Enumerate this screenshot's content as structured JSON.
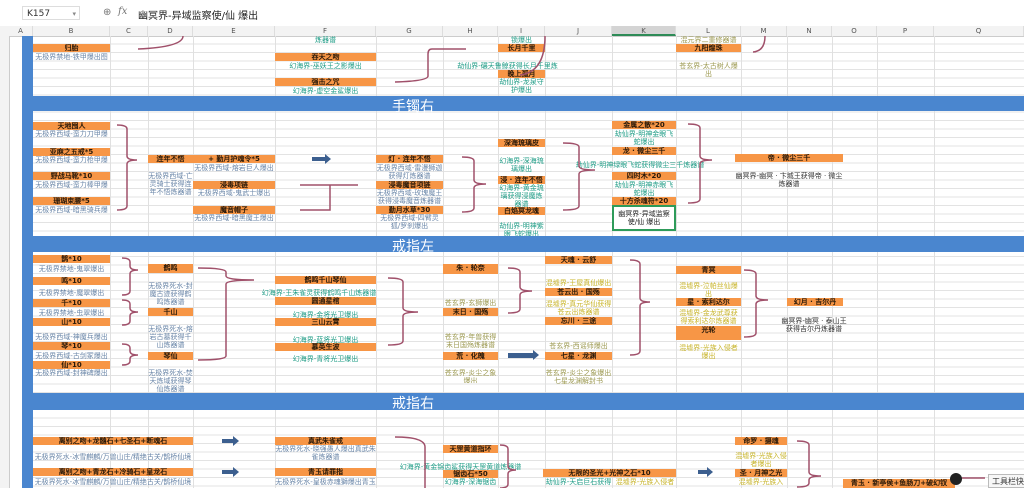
{
  "formula_bar": {
    "cell_ref": "K157",
    "zoom_icon": "zoom-icon",
    "fx_label": "fx",
    "formula": "幽冥界-异域监察使/仙 爆出"
  },
  "columns": [
    "A",
    "B",
    "C",
    "D",
    "E",
    "F",
    "G",
    "H",
    "I",
    "J",
    "K",
    "L",
    "M",
    "N",
    "O",
    "P",
    "Q"
  ],
  "selected_column": "K",
  "sections": [
    "手镯右",
    "戒指左",
    "戒指右"
  ],
  "items": [
    {
      "text": "炼器谱",
      "kind": "note-teal"
    },
    {
      "text": "归胎",
      "kind": "header"
    },
    {
      "text": "无极界禁地-铁甲爆出图",
      "kind": "note-blue"
    },
    {
      "text": "吞天之吻",
      "kind": "header"
    },
    {
      "text": "幻海界-巫妖王之影爆出",
      "kind": "note-teal"
    },
    {
      "text": "强击之咒",
      "kind": "header"
    },
    {
      "text": "幻海界-虚空金鲨爆出",
      "kind": "note-teal"
    },
    {
      "text": "锁爆出",
      "kind": "note-teal"
    },
    {
      "text": "长月千里",
      "kind": "header"
    },
    {
      "text": "劫仙界-碾天鲁鲸获得长月千里炼器谱",
      "kind": "note-teal"
    },
    {
      "text": "晚上孤月",
      "kind": "header"
    },
    {
      "text": "劫仙界-龙泉守护爆出",
      "kind": "note-teal"
    },
    {
      "text": "混元界二重修器谱",
      "kind": "note-olive"
    },
    {
      "text": "九阳煌珠",
      "kind": "header"
    },
    {
      "text": "苍玄界-太古树人爆出",
      "kind": "note-olive"
    },
    {
      "text": "天地囤人",
      "kind": "header"
    },
    {
      "text": "无极界西域-蛮力刀甲爆出",
      "kind": "note-blue"
    },
    {
      "text": "亚麻之五戒*5",
      "kind": "header"
    },
    {
      "text": "无极界西域-蛮力枪甲爆出",
      "kind": "note-blue"
    },
    {
      "text": "野战马靴*10",
      "kind": "header"
    },
    {
      "text": "无极界西域-蛮力棒甲爆出",
      "kind": "note-blue"
    },
    {
      "text": "珊瑚束腰*5",
      "kind": "header"
    },
    {
      "text": "无极界西域-暗黑骑兵爆出",
      "kind": "note-blue"
    },
    {
      "text": "连年不悟",
      "kind": "header"
    },
    {
      "text": "无极界西域-亡灵骑士获得连年不悟炼器谱",
      "kind": "note-blue"
    },
    {
      "text": "+ 勤月护魂令*5",
      "kind": "header"
    },
    {
      "text": "无极界西域-熔岩巨人爆出",
      "kind": "note-blue"
    },
    {
      "text": "浸毒项链",
      "kind": "header"
    },
    {
      "text": "无极界西域-鬼武士爆出",
      "kind": "note-blue"
    },
    {
      "text": "魔音帽子",
      "kind": "header"
    },
    {
      "text": "无极界西域-暗黑魔王爆出",
      "kind": "note-blue"
    },
    {
      "text": "灯 · 连年不悟",
      "kind": "header"
    },
    {
      "text": "无极界西域-雷漫狮迦获得灯炼器谱",
      "kind": "note-blue"
    },
    {
      "text": "浸毒魔音项链",
      "kind": "header"
    },
    {
      "text": "无极界西域-玫瑰魔王获得浸毒魔音炼器谱",
      "kind": "note-blue"
    },
    {
      "text": "勤月水草*30",
      "kind": "header"
    },
    {
      "text": "无极界西域-四臂灵狐/罗刹爆出",
      "kind": "note-blue"
    },
    {
      "text": "深海琉璃皮",
      "kind": "header"
    },
    {
      "text": "幻海界-深海琉璃爆出",
      "kind": "note-teal"
    },
    {
      "text": "浸 · 连年不悟",
      "kind": "header"
    },
    {
      "text": "幻海界-黄金琉璃获得浸魔炼器谱",
      "kind": "note-teal"
    },
    {
      "text": "白焰冥龙魂*88",
      "kind": "header"
    },
    {
      "text": "劫仙界-明神紫眼飞蛇爆出",
      "kind": "note-teal"
    },
    {
      "text": "金属之散*20",
      "kind": "header"
    },
    {
      "text": "劫仙界-明神金眼飞蛇爆出",
      "kind": "note-teal"
    },
    {
      "text": "龙 · 微尘三千",
      "kind": "header"
    },
    {
      "text": "劫仙界-明神绿眼飞蛇获得微尘三千炼器谱",
      "kind": "note-teal"
    },
    {
      "text": "四时木*20",
      "kind": "header"
    },
    {
      "text": "劫仙界-明神赤眼飞蛇爆出",
      "kind": "note-teal"
    },
    {
      "text": "十方杀魂符*20",
      "kind": "header"
    },
    {
      "text": "幽冥界-异域监察使/仙 爆出",
      "kind": "selected"
    },
    {
      "text": "帝 · 微尘三千",
      "kind": "header"
    },
    {
      "text": "幽冥界-幽冥 · 卞城王获得帝 · 微尘炼器谱",
      "kind": "note-dark"
    },
    {
      "text": "鹊*10",
      "kind": "header"
    },
    {
      "text": "无极界禁地-鬼翠爆出",
      "kind": "note-blue"
    },
    {
      "text": "鸣*10",
      "kind": "header"
    },
    {
      "text": "无极界禁地-魔翠爆出",
      "kind": "note-blue"
    },
    {
      "text": "千*10",
      "kind": "header"
    },
    {
      "text": "无极界禁地-虫翠爆出",
      "kind": "note-blue"
    },
    {
      "text": "山*10",
      "kind": "header"
    },
    {
      "text": "无极界西域-神魔兵爆出",
      "kind": "note-blue"
    },
    {
      "text": "琴*10",
      "kind": "header"
    },
    {
      "text": "无极界西域-古剑冢爆出",
      "kind": "note-blue"
    },
    {
      "text": "仙*10",
      "kind": "header"
    },
    {
      "text": "无极界西域-封神碑爆出",
      "kind": "note-blue"
    },
    {
      "text": "鹤鸣",
      "kind": "header"
    },
    {
      "text": "无极界死水-封魔古迹获得鹤鸣炼器谱",
      "kind": "note-blue"
    },
    {
      "text": "千山",
      "kind": "header"
    },
    {
      "text": "无极界死水-熔岩古墓获得千山炼器谱",
      "kind": "note-blue"
    },
    {
      "text": "琴仙",
      "kind": "header"
    },
    {
      "text": "无极界死水-焚天炼域获得琴仙炼器谱",
      "kind": "note-blue"
    },
    {
      "text": "鹤鸣千山琴仙",
      "kind": "header"
    },
    {
      "text": "幻海界-王朱雀灵获得鹤鸣千山炼器谱",
      "kind": "note-teal"
    },
    {
      "text": "圆通星棺",
      "kind": "header"
    },
    {
      "text": "幻海界-金将光卫爆出",
      "kind": "note-teal"
    },
    {
      "text": "三山云霄",
      "kind": "header"
    },
    {
      "text": "幻海界-蓝将光卫爆出",
      "kind": "note-teal"
    },
    {
      "text": "慕英生波",
      "kind": "header"
    },
    {
      "text": "幻海界-青将光卫爆出",
      "kind": "note-teal"
    },
    {
      "text": "朱 · 轮奈",
      "kind": "header"
    },
    {
      "text": "苍玄界-玄狮爆出",
      "kind": "note-olive"
    },
    {
      "text": "末日 · 国殇",
      "kind": "header"
    },
    {
      "text": "苍玄界-年兽获得末日国殇炼器谱",
      "kind": "note-olive"
    },
    {
      "text": "荒 · 化魄",
      "kind": "header"
    },
    {
      "text": "苍玄界-炎尘之象爆出",
      "kind": "note-olive"
    },
    {
      "text": "天魂 · 云舒",
      "kind": "header"
    },
    {
      "text": "混墟界-王屋真仙爆出",
      "kind": "note-yellow"
    },
    {
      "text": "苍云出 · 国殇",
      "kind": "header"
    },
    {
      "text": "混墟界-真元华仙获得苍云出炼器谱",
      "kind": "note-yellow"
    },
    {
      "text": "忘川 · 三途",
      "kind": "header"
    },
    {
      "text": "苍玄界-西谣师爆出",
      "kind": "note-olive"
    },
    {
      "text": "七星 · 龙渊",
      "kind": "header"
    },
    {
      "text": "苍玄界-炎尘之象爆出七星龙渊解封书",
      "kind": "note-olive"
    },
    {
      "text": "青冥",
      "kind": "header"
    },
    {
      "text": "混墟界-泣帕丝仙爆出",
      "kind": "note-yellow"
    },
    {
      "text": "星 · 索利达尔",
      "kind": "header"
    },
    {
      "text": "混墟界-金龙武尊获得索利达尔炼器谱",
      "kind": "note-yellow"
    },
    {
      "text": "光轮",
      "kind": "header"
    },
    {
      "text": "混墟界-光族入侵者爆出",
      "kind": "note-yellow"
    },
    {
      "text": "幻月 · 吉尔丹",
      "kind": "header"
    },
    {
      "text": "幽冥界-幽冥 · 泰山王获得吉尔丹炼器谱",
      "kind": "note-dark"
    },
    {
      "text": "离别之吻+龙髓石+七圣石+断魂石",
      "kind": "header"
    },
    {
      "text": "无极界死水-冰雪麒麟/万兽山庄/精绝古关/鹊桥仙境",
      "kind": "note-blue"
    },
    {
      "text": "真武朱雀戒",
      "kind": "header"
    },
    {
      "text": "无极界死水-晓强愚人爆出真武朱雀炼器谱",
      "kind": "note-blue"
    },
    {
      "text": "离别之吻+青龙石+冷骑石+皇龙石",
      "kind": "header"
    },
    {
      "text": "无极界死水-冰雪麒麟/万兽山庄/精绝古关/鹊桥仙境",
      "kind": "note-blue"
    },
    {
      "text": "青玉请罪指",
      "kind": "header"
    },
    {
      "text": "无极界死水-皇极赤魂獅爆出青玉",
      "kind": "note-blue"
    },
    {
      "text": "天罡黄道指环",
      "kind": "header"
    },
    {
      "text": "幻海界-黄金锦齿鲨获得天罡黄道炼器谱",
      "kind": "note-teal"
    },
    {
      "text": "锯齿石*50",
      "kind": "header"
    },
    {
      "text": "幻海界-深海锯齿",
      "kind": "note-teal"
    },
    {
      "text": "无限的圣光+光神之石*10",
      "kind": "header"
    },
    {
      "text": "劫仙界-天启巨石获得",
      "kind": "note-teal"
    },
    {
      "text": "混墟界-光族入侵者",
      "kind": "note-yellow"
    },
    {
      "text": "命罗 · 摄魂",
      "kind": "header"
    },
    {
      "text": "混墟界-光族入侵者爆出",
      "kind": "note-yellow"
    },
    {
      "text": "圣 · 月神之光",
      "kind": "header"
    },
    {
      "text": "混墟界-光族入",
      "kind": "note-yellow"
    },
    {
      "text": "青玉 · 新亭侯+鱼肠刀+破幻钗",
      "kind": "header"
    }
  ],
  "tooltip": "工具栏快",
  "colors": {
    "orange": "#f79646",
    "band": "#4a86cf",
    "bracket": "#a0506a",
    "arrow": "#3c5f8f"
  }
}
